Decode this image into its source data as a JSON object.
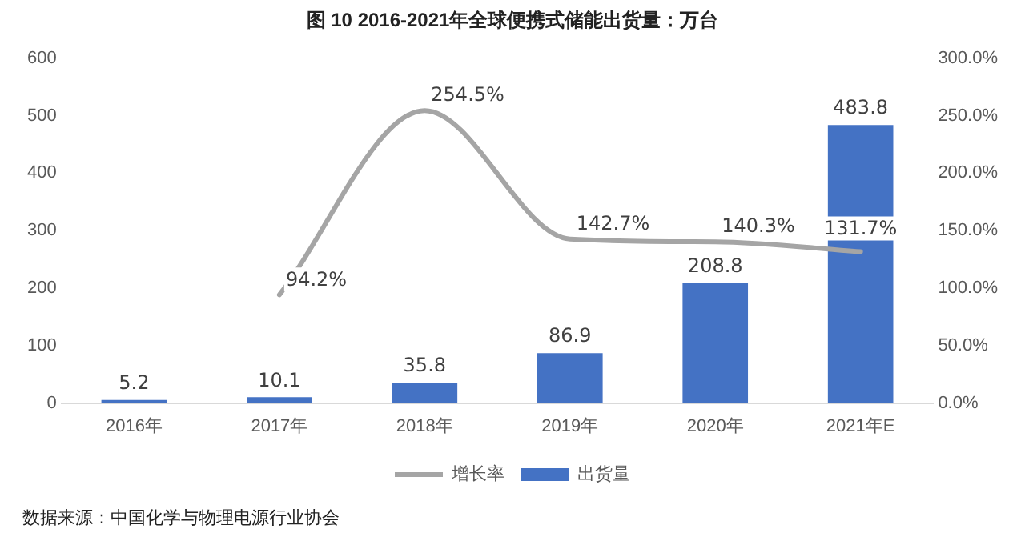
{
  "chart_data": {
    "type": "bar",
    "title": "图 10 2016-2021年全球便携式储能出货量：万台",
    "categories": [
      "2016年",
      "2017年",
      "2018年",
      "2019年",
      "2020年",
      "2021年E"
    ],
    "series": [
      {
        "name": "出货量",
        "color": "#4472c4",
        "values": [
          5.2,
          10.1,
          35.8,
          86.9,
          208.8,
          483.8
        ],
        "value_labels": [
          "5.2",
          "10.1",
          "35.8",
          "86.9",
          "208.8",
          "483.8"
        ]
      },
      {
        "name": "增长率",
        "type": "line",
        "axis": "y2",
        "color": "#a5a5a5",
        "values": [
          null,
          94.2,
          254.5,
          142.7,
          140.3,
          131.7
        ],
        "value_labels": [
          null,
          "94.2%",
          "254.5%",
          "142.7%",
          "140.3%",
          "131.7%"
        ]
      }
    ],
    "ylim": [
      0,
      600
    ],
    "yticks": [
      0,
      100,
      200,
      300,
      400,
      500,
      600
    ],
    "y2lim": [
      0,
      300
    ],
    "y2ticks": [
      {
        "value": 0,
        "label": "0.0%"
      },
      {
        "value": 50,
        "label": "50.0%"
      },
      {
        "value": 100,
        "label": "100.0%"
      },
      {
        "value": 150,
        "label": "150.0%"
      },
      {
        "value": 200,
        "label": "200.0%"
      },
      {
        "value": 250,
        "label": "250.0%"
      },
      {
        "value": 300,
        "label": "300.0%"
      }
    ],
    "grid": false,
    "legend": "bottom",
    "marker": "none",
    "line_style": "solid",
    "annotations": [
      "数据来源：中国化学与物理电源行业协会"
    ]
  }
}
